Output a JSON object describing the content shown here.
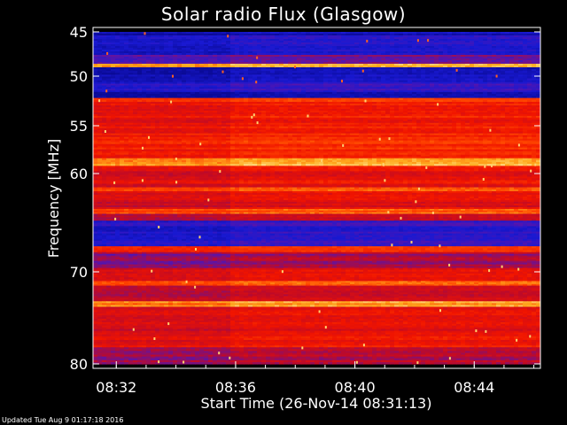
{
  "title": "Solar radio Flux (Glasgow)",
  "footer": "Updated Tue Aug  9 01:17:18 2016",
  "chart_data": {
    "type": "heatmap",
    "title": "Solar radio Flux (Glasgow)",
    "xlabel": "Start Time (26-Nov-14 08:31:13)",
    "ylabel": "Frequency [MHz]",
    "x_ticks": [
      "08:32",
      "08:36",
      "08:40",
      "08:44"
    ],
    "x_tick_minutes": [
      0.78,
      4.78,
      8.78,
      12.78
    ],
    "xlim_minutes": [
      0,
      15
    ],
    "y_ticks": [
      45,
      50,
      55,
      60,
      70,
      80
    ],
    "ylim": [
      45,
      80
    ],
    "colors": {
      "background": "#000000",
      "low": "#1a1acc",
      "high": "#ff2000",
      "bright": "#ffe070"
    },
    "bands": [
      {
        "f0": 45.0,
        "f1": 45.4,
        "level": 0.1
      },
      {
        "f0": 45.4,
        "f1": 46.8,
        "level": 0.18
      },
      {
        "f0": 46.8,
        "f1": 47.6,
        "level": 0.12
      },
      {
        "f0": 47.6,
        "f1": 48.6,
        "level": 0.35
      },
      {
        "f0": 48.6,
        "f1": 49.0,
        "level": 0.95
      },
      {
        "f0": 49.0,
        "f1": 50.6,
        "level": 0.1
      },
      {
        "f0": 50.6,
        "f1": 51.6,
        "level": 0.22
      },
      {
        "f0": 51.6,
        "f1": 52.2,
        "level": 0.06
      },
      {
        "f0": 52.2,
        "f1": 52.6,
        "level": 0.75
      },
      {
        "f0": 52.6,
        "f1": 55.8,
        "level": 0.62
      },
      {
        "f0": 55.8,
        "f1": 58.4,
        "level": 0.68
      },
      {
        "f0": 58.4,
        "f1": 59.2,
        "level": 0.88
      },
      {
        "f0": 59.2,
        "f1": 61.4,
        "level": 0.58
      },
      {
        "f0": 61.4,
        "f1": 61.8,
        "level": 0.8
      },
      {
        "f0": 61.8,
        "f1": 63.6,
        "level": 0.55
      },
      {
        "f0": 63.6,
        "f1": 64.1,
        "level": 0.8
      },
      {
        "f0": 64.1,
        "f1": 64.8,
        "level": 0.5
      },
      {
        "f0": 64.8,
        "f1": 67.4,
        "level": 0.2
      },
      {
        "f0": 67.4,
        "f1": 68.0,
        "level": 0.7
      },
      {
        "f0": 68.0,
        "f1": 69.6,
        "level": 0.42
      },
      {
        "f0": 69.6,
        "f1": 71.0,
        "level": 0.55
      },
      {
        "f0": 71.0,
        "f1": 71.5,
        "level": 0.8
      },
      {
        "f0": 71.5,
        "f1": 73.2,
        "level": 0.5
      },
      {
        "f0": 73.2,
        "f1": 73.8,
        "level": 0.85
      },
      {
        "f0": 73.8,
        "f1": 76.4,
        "level": 0.55
      },
      {
        "f0": 76.4,
        "f1": 78.2,
        "level": 0.6
      },
      {
        "f0": 78.2,
        "f1": 80.0,
        "level": 0.45
      }
    ]
  }
}
